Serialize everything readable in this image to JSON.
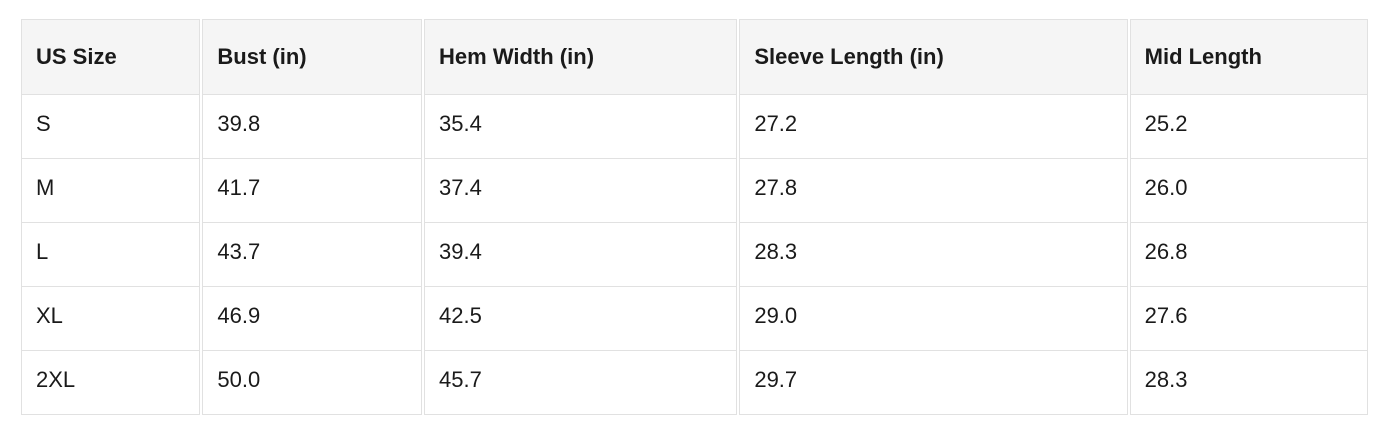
{
  "size_chart": {
    "columns": [
      "US Size",
      "Bust (in)",
      "Hem Width (in)",
      "Sleeve Length (in)",
      "Mid Length"
    ],
    "rows": [
      [
        "S",
        "39.8",
        "35.4",
        "27.2",
        "25.2"
      ],
      [
        "M",
        "41.7",
        "37.4",
        "27.8",
        "26.0"
      ],
      [
        "L",
        "43.7",
        "39.4",
        "28.3",
        "26.8"
      ],
      [
        "XL",
        "46.9",
        "42.5",
        "29.0",
        "27.6"
      ],
      [
        "2XL",
        "50.0",
        "45.7",
        "29.7",
        "28.3"
      ]
    ],
    "colors": {
      "header_bg": "#f5f5f5",
      "border": "#e1e1e1",
      "text": "#1a1a1a",
      "page_bg": "#ffffff"
    }
  }
}
